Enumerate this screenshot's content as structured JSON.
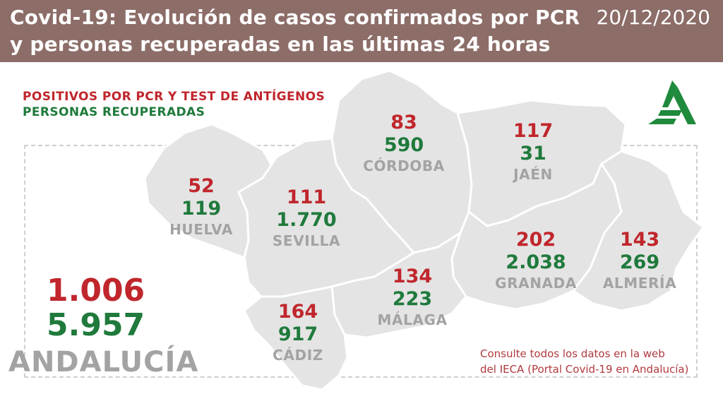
{
  "header": {
    "title": "Covid-19: Evolución de casos confirmados por PCR y personas recuperadas en las últimas 24 horas",
    "date": "20/12/2020"
  },
  "legend": {
    "positives": "POSITIVOS POR PCR Y TEST DE ANTÍGENOS",
    "recovered": "PERSONAS RECUPERADAS"
  },
  "logo": {
    "icon": "junta-andalucia-logo-icon",
    "color": "#1f8a3c"
  },
  "colors": {
    "positive": "#c0262c",
    "recovered": "#1f7a3c",
    "province_name": "#a3a3a3",
    "map_fill": "#e4e4e4",
    "header": "#8c6d68"
  },
  "provinces": {
    "huelva": {
      "name": "HUELVA",
      "positives": "52",
      "recovered": "119"
    },
    "sevilla": {
      "name": "SEVILLA",
      "positives": "111",
      "recovered": "1.770"
    },
    "cordoba": {
      "name": "CÓRDOBA",
      "positives": "83",
      "recovered": "590"
    },
    "jaen": {
      "name": "JAÉN",
      "positives": "117",
      "recovered": "31"
    },
    "granada": {
      "name": "GRANADA",
      "positives": "202",
      "recovered": "2.038"
    },
    "almeria": {
      "name": "ALMERÍA",
      "positives": "143",
      "recovered": "269"
    },
    "malaga": {
      "name": "MÁLAGA",
      "positives": "134",
      "recovered": "223"
    },
    "cadiz": {
      "name": "CÁDIZ",
      "positives": "164",
      "recovered": "917"
    }
  },
  "total": {
    "name": "ANDALUCÍA",
    "positives": "1.006",
    "recovered": "5.957"
  },
  "footer": {
    "line1": "Consulte todos los datos en la web",
    "line2": "del IECA (Portal Covid-19 en Andalucía)"
  }
}
